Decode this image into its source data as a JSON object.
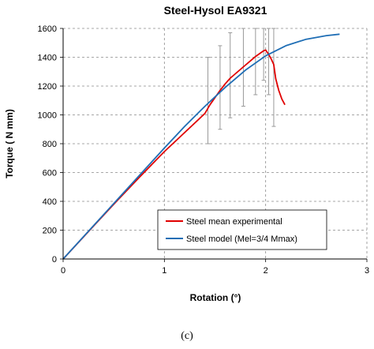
{
  "chart_data": {
    "type": "line",
    "title": "Steel-Hysol EA9321",
    "xlabel": "Rotation (°)",
    "ylabel": "Torque ( N mm)",
    "xlim": [
      0,
      3
    ],
    "ylim": [
      0,
      1600
    ],
    "xticks": [
      "0",
      "1",
      "2",
      "3"
    ],
    "yticks": [
      "0",
      "200",
      "400",
      "600",
      "800",
      "1000",
      "1200",
      "1400",
      "1600"
    ],
    "grid": "dashed",
    "legend_position": "bottom-right",
    "series": [
      {
        "name": "Steel mean experimental",
        "color": "#e00000",
        "x": [
          0,
          0.25,
          0.5,
          0.75,
          1.0,
          1.25,
          1.4,
          1.45,
          1.5,
          1.55,
          1.6,
          1.65,
          1.7,
          1.75,
          1.8,
          1.85,
          1.9,
          1.95,
          1.98,
          2.0,
          2.03,
          2.05,
          2.08,
          2.1,
          2.13,
          2.16,
          2.19
        ],
        "y": [
          0,
          190,
          380,
          565,
          745,
          910,
          1010,
          1070,
          1120,
          1170,
          1215,
          1255,
          1285,
          1315,
          1345,
          1375,
          1405,
          1430,
          1445,
          1450,
          1420,
          1395,
          1350,
          1250,
          1170,
          1110,
          1070
        ]
      },
      {
        "name": "Steel model (Mel=3/4 Mmax)",
        "color": "#1f6eb5",
        "x": [
          0,
          0.5,
          1.0,
          1.2,
          1.4,
          1.6,
          1.8,
          2.0,
          2.2,
          2.4,
          2.6,
          2.73
        ],
        "y": [
          0,
          385,
          770,
          920,
          1060,
          1190,
          1310,
          1410,
          1480,
          1525,
          1550,
          1560
        ]
      }
    ],
    "error_bars": {
      "color": "#999999",
      "items": [
        {
          "x": 1.43,
          "low": 800,
          "high": 1400
        },
        {
          "x": 1.55,
          "low": 900,
          "high": 1480
        },
        {
          "x": 1.65,
          "low": 980,
          "high": 1570
        },
        {
          "x": 1.78,
          "low": 1060,
          "high": 1600
        },
        {
          "x": 1.9,
          "low": 1140,
          "high": 1600
        },
        {
          "x": 1.98,
          "low": 1240,
          "high": 1600
        },
        {
          "x": 2.03,
          "low": 1140,
          "high": 1600
        },
        {
          "x": 2.08,
          "low": 920,
          "high": 1600
        }
      ]
    }
  },
  "caption": "(c)"
}
